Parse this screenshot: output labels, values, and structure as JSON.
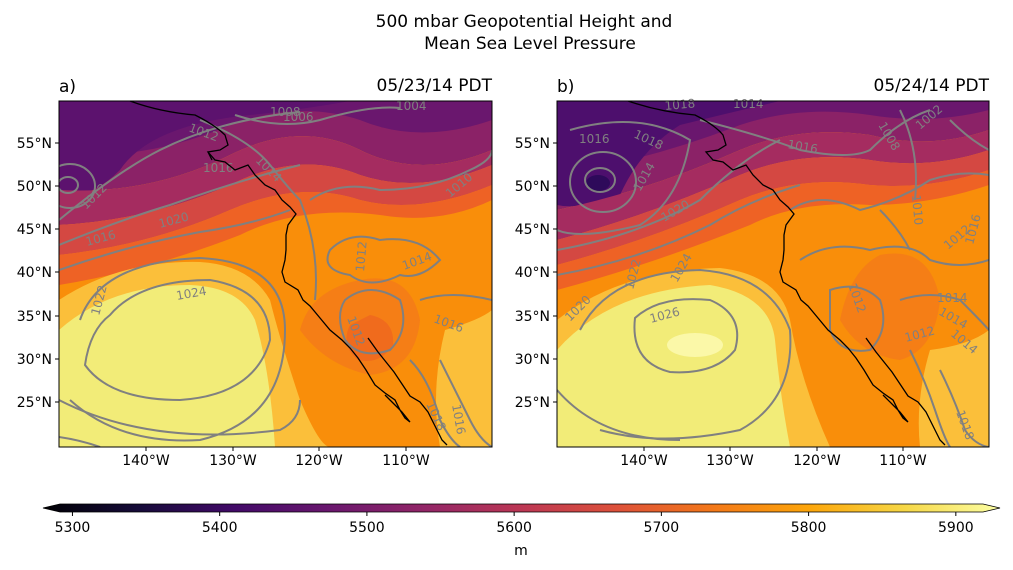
{
  "figure": {
    "title_line1": "500 mbar Geopotential Height and",
    "title_line2": "Mean Sea Level Pressure"
  },
  "chart_data": [
    {
      "type": "heatmap",
      "panel_label": "a)",
      "date_label": "05/23/14 PDT",
      "x_ticks": [
        "140°W",
        "130°W",
        "120°W",
        "110°W"
      ],
      "y_ticks": [
        "55°N",
        "50°N",
        "45°N",
        "40°N",
        "35°N",
        "30°N",
        "25°N"
      ],
      "x_tick_values": [
        -140,
        -130,
        -120,
        -110
      ],
      "y_tick_values": [
        55,
        50,
        45,
        40,
        35,
        30,
        25
      ],
      "xlim": [
        -150,
        -100
      ],
      "ylim": [
        20,
        60
      ],
      "pressure_contour_labels": [
        "1008",
        "1006",
        "1004",
        "1012",
        "1012",
        "1016",
        "1014",
        "1010",
        "1016",
        "1020",
        "1012",
        "1014",
        "1024",
        "1022",
        "1012",
        "1016",
        "1016",
        "1018"
      ],
      "height_field_description_levels": [
        5450,
        5500,
        5550,
        5600,
        5650,
        5700,
        5750,
        5800,
        5850,
        5900
      ]
    },
    {
      "type": "heatmap",
      "panel_label": "b)",
      "date_label": "05/24/14 PDT",
      "x_ticks": [
        "140°W",
        "130°W",
        "120°W",
        "110°W"
      ],
      "y_ticks": [
        "55°N",
        "50°N",
        "45°N",
        "40°N",
        "35°N",
        "30°N",
        "25°N"
      ],
      "x_tick_values": [
        -140,
        -130,
        -120,
        -110
      ],
      "y_tick_values": [
        55,
        50,
        45,
        40,
        35,
        30,
        25
      ],
      "xlim": [
        -150,
        -100
      ],
      "ylim": [
        20,
        60
      ],
      "pressure_contour_labels": [
        "1018",
        "1014",
        "1016",
        "1018",
        "1016",
        "1002",
        "1008",
        "1014",
        "1020",
        "1010",
        "1012",
        "1024",
        "1022",
        "1020",
        "1026",
        "1012",
        "1014",
        "1014",
        "1012",
        "1016",
        "1014",
        "1018"
      ],
      "height_field_description_levels": [
        5450,
        5500,
        5550,
        5600,
        5650,
        5700,
        5750,
        5800,
        5850,
        5900
      ]
    }
  ],
  "colorbar": {
    "ticks": [
      "5300",
      "5400",
      "5500",
      "5600",
      "5700",
      "5800",
      "5900"
    ],
    "tick_values": [
      5300,
      5400,
      5500,
      5600,
      5700,
      5800,
      5900
    ],
    "range": [
      5280,
      5930
    ],
    "label": "m",
    "colormap": "inferno"
  }
}
